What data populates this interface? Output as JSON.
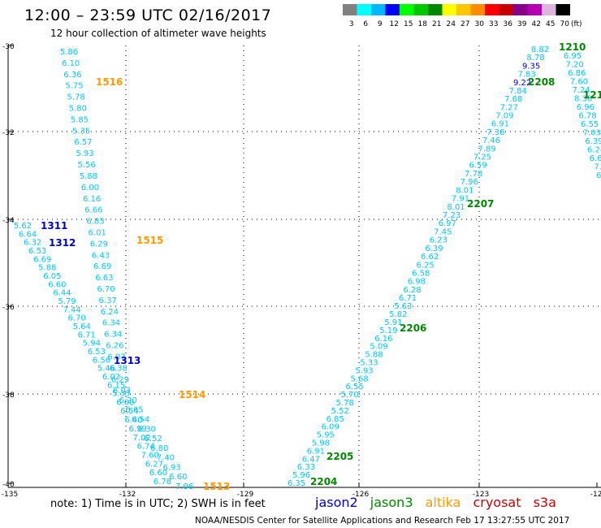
{
  "header": {
    "title": "12:00 – 23:59 UTC 02/16/2017",
    "subtitle": "12 hour collection of altimeter wave heights"
  },
  "color_scale": {
    "unit": "(ft)",
    "bins": [
      {
        "color": "#808080",
        "label": "3"
      },
      {
        "color": "#00ffff",
        "label": "6"
      },
      {
        "color": "#00b8ff",
        "label": "9"
      },
      {
        "color": "#0000ff",
        "label": "12"
      },
      {
        "color": "#00ff00",
        "label": "15"
      },
      {
        "color": "#00c800",
        "label": "18"
      },
      {
        "color": "#008800",
        "label": "21"
      },
      {
        "color": "#ffff00",
        "label": "24"
      },
      {
        "color": "#ffc800",
        "label": "27"
      },
      {
        "color": "#ff8c00",
        "label": "30"
      },
      {
        "color": "#ff0000",
        "label": "33"
      },
      {
        "color": "#c80000",
        "label": "36"
      },
      {
        "color": "#8b008b",
        "label": "39"
      },
      {
        "color": "#b400b4",
        "label": "42"
      },
      {
        "color": "#dcb4dc",
        "label": "45"
      },
      {
        "color": "#000000",
        "label": "70"
      }
    ]
  },
  "axes": {
    "lon_labels": [
      "-135",
      "-132",
      "-129",
      "-126",
      "-123",
      "-120"
    ],
    "lat_labels": [
      "-30",
      "-32",
      "-34",
      "-36",
      "-38",
      "-40"
    ]
  },
  "colors": {
    "jason2": "#0000cc",
    "jason3": "#008800",
    "altika": "#ff9900",
    "cryosat": "#cc0000",
    "s3a": "#cc0000",
    "swh": "#00c8ff"
  },
  "tracks": [
    {
      "values": [
        "5.86",
        "6.10",
        "6.36",
        "5.75",
        "5.78",
        "5.80",
        "5.85",
        "5.35",
        "6.57",
        "5.93",
        "5.56",
        "5.88",
        "6.00",
        "6.16",
        "6.66",
        "6.83",
        "6.01",
        "6.29",
        "6.43",
        "6.69",
        "6.63",
        "6.70",
        "6.37",
        "6.24",
        "6.34",
        "6.34",
        "6.26",
        "6.07",
        "6.38",
        "6.29",
        "6.03",
        "6.20",
        "6.65",
        "6.54",
        "6.30",
        "6.52",
        "6.80",
        "7.40",
        "6.93",
        "6.60",
        "7.06"
      ]
    },
    {
      "values": [
        "5.62",
        "6.64",
        "6.32",
        "6.53",
        "6.69",
        "5.88",
        "6.05",
        "6.60",
        "6.44",
        "5.79",
        "7.44",
        "6.70",
        "5.64",
        "6.71",
        "5.94",
        "6.53",
        "6.56",
        "5.46",
        "6.02",
        "6.15",
        "5.33",
        "6.08",
        "6.54",
        "6.40",
        "6.99",
        "7.02",
        "6.74",
        "7.60",
        "6.27",
        "6.60",
        "6.78"
      ]
    },
    {
      "values": [
        "6.35",
        "5.96",
        "6.33",
        "6.47",
        "6.91",
        "5.98",
        "5.95",
        "6.09",
        "6.85",
        "5.52",
        "5.78",
        "5.70",
        "6.55",
        "5.68",
        "5.93",
        "5.33",
        "5.88",
        "5.09",
        "6.16",
        "5.19",
        "5.91",
        "5.82",
        "5.63",
        "6.71",
        "6.28",
        "6.98",
        "6.58",
        "6.25",
        "6.62",
        "6.39",
        "6.23",
        "7.45",
        "6.97",
        "7.23",
        "8.01",
        "7.91",
        "8.01",
        "7.96",
        "7.78",
        "6.59",
        "7.25",
        "7.89",
        "7.46",
        "7.38",
        "6.91",
        "7.09",
        "7.27",
        "7.68",
        "7.84",
        "9.22",
        "7.83",
        "9.35",
        "8.78",
        "8.82"
      ]
    },
    {
      "values": [
        "6.95",
        "7.20",
        "6.86",
        "7.60",
        "7.24",
        "8.38",
        "6.96",
        "6.78",
        "6.55",
        "7.03",
        "6.39",
        "6.24",
        "6.67",
        "7.0",
        "6.8"
      ]
    }
  ],
  "track_labels": [
    {
      "text": "1516",
      "mission": "altika"
    },
    {
      "text": "1515",
      "mission": "altika"
    },
    {
      "text": "1514",
      "mission": "altika"
    },
    {
      "text": "1513",
      "mission": "altika"
    },
    {
      "text": "1311",
      "mission": "jason2"
    },
    {
      "text": "1312",
      "mission": "jason2"
    },
    {
      "text": "1313",
      "mission": "jason2"
    },
    {
      "text": "1210",
      "mission": "jason3"
    },
    {
      "text": "121",
      "mission": "jason3"
    },
    {
      "text": "2208",
      "mission": "jason3"
    },
    {
      "text": "2207",
      "mission": "jason3"
    },
    {
      "text": "2206",
      "mission": "jason3"
    },
    {
      "text": "2205",
      "mission": "jason3"
    },
    {
      "text": "2204",
      "mission": "jason3"
    }
  ],
  "footer": {
    "note": "note:  1) Time is in UTC;  2) SWH is in feet",
    "credit": "NOAA/NESDIS Center for Satellite Applications and Research    Feb 17 13:27:55 UTC 2017"
  },
  "missions": [
    {
      "name": "jason2",
      "color": "#0000cc"
    },
    {
      "name": "jason3",
      "color": "#008800"
    },
    {
      "name": "altika",
      "color": "#ff9900"
    },
    {
      "name": "cryosat",
      "color": "#cc0000"
    },
    {
      "name": "s3a",
      "color": "#cc0000"
    }
  ]
}
